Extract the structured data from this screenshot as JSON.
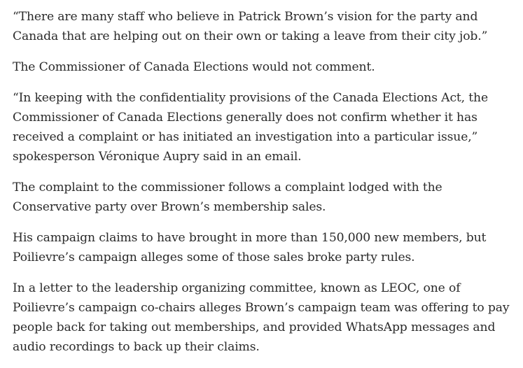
{
  "article": {
    "paragraphs": [
      "“There are many staff who believe in Patrick Brown’s vision for the party and Canada that are helping out on their own or taking a leave from their city job.”",
      "The Commissioner of Canada Elections would not comment.",
      "“In keeping with the confidentiality provisions of the Canada Elections Act, the Commissioner of Canada Elections generally does not confirm whether it has received a complaint or has initiated an investigation into a particular issue,” spokesperson Véronique Aupry said in an email.",
      "The complaint to the commissioner follows a complaint lodged with the Conservative party over Brown’s membership sales.",
      "His campaign claims to have brought in more than 150,000 new members, but Poilievre’s campaign alleges some of those sales broke party rules.",
      "In a letter to the leadership organizing committee, known as LEOC, one of Poilievre’s campaign co-chairs alleges Brown’s campaign team was offering to pay people back for taking out memberships, and provided WhatsApp messages and audio recordings to back up their claims."
    ]
  }
}
